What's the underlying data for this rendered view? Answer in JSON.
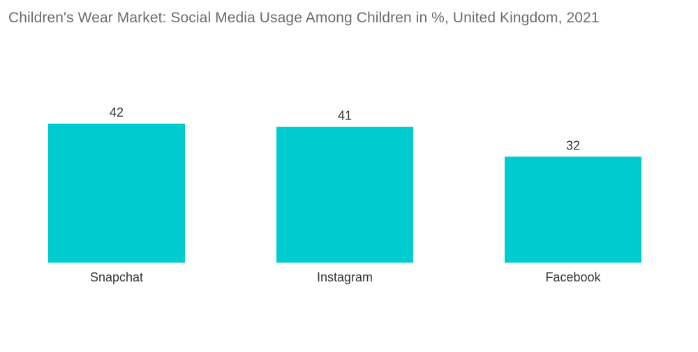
{
  "chart_data": {
    "type": "bar",
    "title": "Children's Wear Market: Social Media Usage Among Children in %, United Kingdom, 2021",
    "categories": [
      "Snapchat",
      "Instagram",
      "Facebook"
    ],
    "values": [
      42,
      41,
      32
    ],
    "xlabel": "",
    "ylabel": "",
    "ylim": [
      0,
      50
    ],
    "grid": false,
    "legend": "none",
    "bar_color": "#00ccd0"
  }
}
